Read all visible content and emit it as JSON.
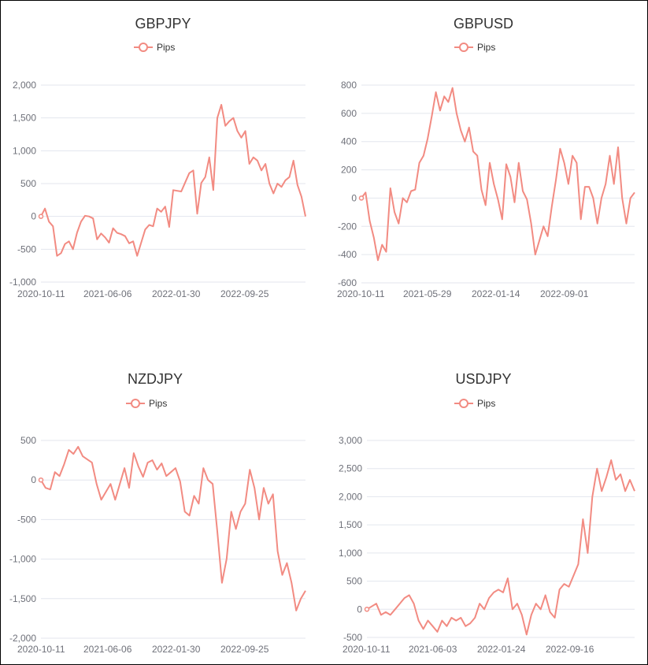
{
  "colors": {
    "series": "#f28b82",
    "axis_text": "#6e7079",
    "grid": "#e3e6ee",
    "title": "#333333"
  },
  "chart_data": [
    {
      "type": "line",
      "title": "GBPJPY",
      "legend": "Pips",
      "ylim": [
        -1000,
        2000
      ],
      "yticks": [
        2000,
        1500,
        1000,
        500,
        0,
        -500,
        -1000
      ],
      "ytick_labels": [
        "2,000",
        "1,500",
        "1,000",
        "500",
        "0",
        "-500",
        "-1,000"
      ],
      "xtick_labels": [
        "2020-10-11",
        "2021-06-06",
        "2022-01-30",
        "2022-09-25"
      ],
      "series": [
        {
          "name": "Pips",
          "values": [
            0,
            120,
            -80,
            -150,
            -600,
            -560,
            -420,
            -380,
            -500,
            -250,
            -80,
            10,
            0,
            -30,
            -350,
            -260,
            -320,
            -400,
            -180,
            -250,
            -270,
            -300,
            -410,
            -380,
            -600,
            -400,
            -200,
            -130,
            -150,
            120,
            70,
            150,
            -160,
            400,
            390,
            380,
            520,
            660,
            700,
            40,
            510,
            600,
            900,
            400,
            1500,
            1700,
            1380,
            1450,
            1500,
            1300,
            1200,
            1300,
            800,
            900,
            850,
            700,
            800,
            500,
            350,
            500,
            450,
            550,
            600,
            850,
            480,
            300,
            0
          ]
        }
      ]
    },
    {
      "type": "line",
      "title": "GBPUSD",
      "legend": "Pips",
      "ylim": [
        -600,
        800
      ],
      "yticks": [
        800,
        600,
        400,
        200,
        0,
        -200,
        -400,
        -600
      ],
      "ytick_labels": [
        "800",
        "600",
        "400",
        "200",
        "0",
        "-200",
        "-400",
        "-600"
      ],
      "xtick_labels": [
        "2020-10-11",
        "2021-05-29",
        "2022-01-14",
        "2022-09-01"
      ],
      "series": [
        {
          "name": "Pips",
          "values": [
            0,
            40,
            -160,
            -280,
            -440,
            -330,
            -380,
            70,
            -100,
            -180,
            0,
            -30,
            50,
            60,
            250,
            300,
            420,
            580,
            750,
            620,
            720,
            680,
            780,
            600,
            480,
            400,
            500,
            330,
            300,
            60,
            -50,
            250,
            100,
            -10,
            -150,
            240,
            150,
            -30,
            250,
            50,
            -10,
            -180,
            -400,
            -300,
            -200,
            -270,
            -60,
            130,
            350,
            250,
            100,
            300,
            250,
            -150,
            80,
            80,
            0,
            -180,
            0,
            100,
            300,
            100,
            360,
            0,
            -180,
            0,
            40
          ]
        }
      ]
    },
    {
      "type": "line",
      "title": "NZDJPY",
      "legend": "Pips",
      "ylim": [
        -2000,
        500
      ],
      "yticks": [
        500,
        0,
        -500,
        -1000,
        -1500,
        -2000
      ],
      "ytick_labels": [
        "500",
        "0",
        "-500",
        "-1,000",
        "-1,500",
        "-2,000"
      ],
      "xtick_labels": [
        "2020-10-11",
        "2021-06-06",
        "2022-01-30",
        "2022-09-25"
      ],
      "series": [
        {
          "name": "Pips",
          "values": [
            0,
            -100,
            -120,
            100,
            50,
            200,
            380,
            330,
            420,
            300,
            260,
            220,
            -50,
            -250,
            -150,
            -50,
            -250,
            -50,
            150,
            -100,
            340,
            170,
            40,
            220,
            250,
            130,
            210,
            50,
            100,
            150,
            -20,
            -400,
            -450,
            -200,
            -300,
            150,
            0,
            -50,
            -650,
            -1300,
            -1000,
            -400,
            -620,
            -400,
            -300,
            130,
            -100,
            -500,
            -100,
            -300,
            -180,
            -900,
            -1200,
            -1050,
            -1300,
            -1650,
            -1500,
            -1400
          ]
        }
      ]
    },
    {
      "type": "line",
      "title": "USDJPY",
      "legend": "Pips",
      "ylim": [
        -500,
        3000
      ],
      "yticks": [
        3000,
        2500,
        2000,
        1500,
        1000,
        500,
        0,
        -500
      ],
      "ytick_labels": [
        "3,000",
        "2,500",
        "2,000",
        "1,500",
        "1,000",
        "500",
        "0",
        "-500"
      ],
      "xtick_labels": [
        "2020-10-11",
        "2021-06-03",
        "2022-01-24",
        "2022-09-16"
      ],
      "series": [
        {
          "name": "Pips",
          "values": [
            0,
            50,
            100,
            -100,
            -50,
            -100,
            0,
            100,
            200,
            250,
            100,
            -200,
            -350,
            -200,
            -300,
            -400,
            -200,
            -300,
            -150,
            -200,
            -150,
            -300,
            -250,
            -150,
            100,
            0,
            200,
            300,
            350,
            300,
            550,
            0,
            100,
            -100,
            -450,
            -100,
            100,
            0,
            250,
            -50,
            -150,
            350,
            450,
            400,
            600,
            800,
            1600,
            1000,
            2000,
            2500,
            2100,
            2350,
            2650,
            2300,
            2400,
            2100,
            2300,
            2100
          ]
        }
      ]
    }
  ]
}
